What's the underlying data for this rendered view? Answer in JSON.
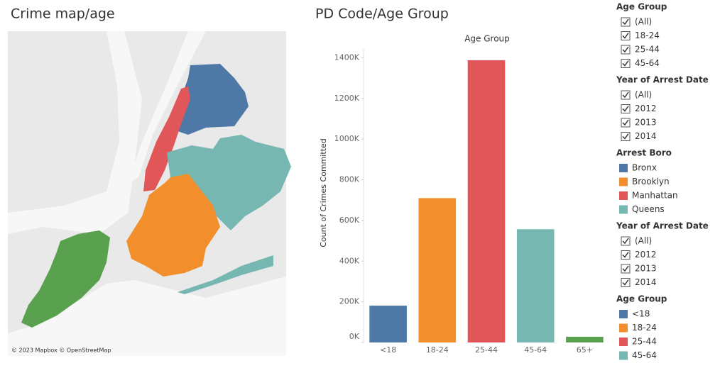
{
  "map": {
    "title": "Crime map/age",
    "attribution": "© 2023 Mapbox © OpenStreetMap"
  },
  "chart_data": {
    "type": "bar",
    "title": "PD Code/Age Group",
    "x_label": "Age Group",
    "y_label": "Count of Crimes Committed",
    "categories": [
      "<18",
      "18-24",
      "25-44",
      "45-64",
      "65+"
    ],
    "values": [
      181000,
      710000,
      1388000,
      557000,
      28000
    ],
    "colors": [
      "#4e79a7",
      "#f28e2b",
      "#e15759",
      "#76b7b2",
      "#59a14f"
    ],
    "ylim": [
      0,
      1440000
    ],
    "yticks": [
      {
        "value": 0,
        "label": "0K"
      },
      {
        "value": 200000,
        "label": "200K"
      },
      {
        "value": 400000,
        "label": "400K"
      },
      {
        "value": 600000,
        "label": "600K"
      },
      {
        "value": 800000,
        "label": "800K"
      },
      {
        "value": 1000000,
        "label": "1000K"
      },
      {
        "value": 1200000,
        "label": "1200K"
      },
      {
        "value": 1400000,
        "label": "1400K"
      }
    ]
  },
  "sidebar": [
    {
      "title": "Age Group",
      "items": [
        "(All)",
        "18-24",
        "25-44",
        "45-64"
      ]
    },
    {
      "title": "Year of Arrest Date",
      "items": [
        "(All)",
        "2012",
        "2013",
        "2014"
      ]
    },
    {
      "title": "Arrest Boro",
      "items": [
        {
          "label": "Bronx",
          "color": "#4e79a7"
        },
        {
          "label": "Brooklyn",
          "color": "#f28e2b"
        },
        {
          "label": "Manhattan",
          "color": "#e15759"
        },
        {
          "label": "Queens",
          "color": "#76b7b2"
        }
      ]
    },
    {
      "title": "Year of Arrest Date",
      "items": [
        "(All)",
        "2012",
        "2013",
        "2014"
      ]
    },
    {
      "title": "Age Group",
      "items": [
        {
          "label": "<18",
          "color": "#4e79a7"
        },
        {
          "label": "18-24",
          "color": "#f28e2b"
        },
        {
          "label": "25-44",
          "color": "#e15759"
        },
        {
          "label": "45-64",
          "color": "#76b7b2"
        }
      ]
    }
  ]
}
